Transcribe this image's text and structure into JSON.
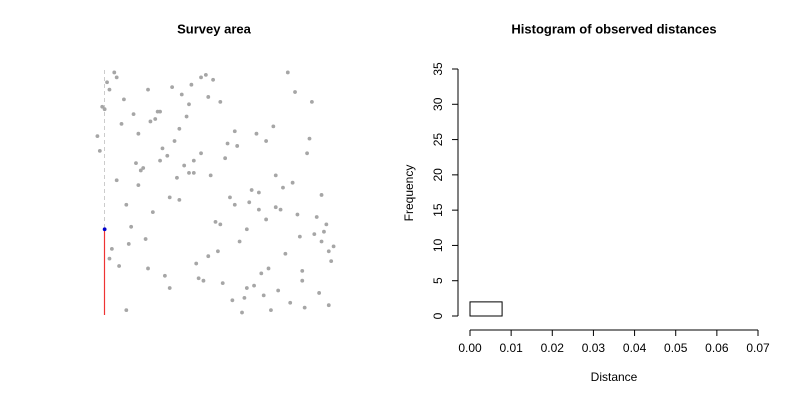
{
  "chart_data": [
    {
      "type": "scatter",
      "title": "Survey area",
      "xlim": [
        0,
        1
      ],
      "ylim": [
        0,
        1
      ],
      "series": [
        {
          "color": "#a6a6a6",
          "x": [
            0.12,
            0.45,
            0.78,
            0.33,
            0.91,
            0.05,
            0.62,
            0.27,
            0.84,
            0.51,
            0.19,
            0.73,
            0.38,
            0.96,
            0.08,
            0.56,
            0.29,
            0.67,
            0.14,
            0.88,
            0.42,
            0.03,
            0.75,
            0.31,
            0.59,
            0.95,
            0.22,
            0.48,
            0.81,
            0.11,
            0.64,
            0.36,
            0.99,
            0.17,
            0.53,
            0.26,
            0.71,
            0.44,
            0.09,
            0.86,
            0.58,
            0.21,
            0.93,
            0.39,
            0.68,
            0.02,
            0.47,
            0.77,
            0.32,
            0.61,
            0.15,
            0.89,
            0.41,
            0.72,
            0.25,
            0.97,
            0.54,
            0.07,
            0.83,
            0.35,
            0.66,
            0.18,
            0.49,
            0.92,
            0.28,
            0.79,
            0.04,
            0.57,
            0.37,
            0.85,
            0.23,
            0.69,
            0.13,
            0.46,
            0.98,
            0.34,
            0.63,
            0.01,
            0.76,
            0.52,
            0.87,
            0.3,
            0.6,
            0.16,
            0.94,
            0.43,
            0.74,
            0.24,
            0.55,
            0.06,
            0.82,
            0.4,
            0.7,
            0.2,
            0.5,
            0.9,
            0.1,
            0.65,
            0.35,
            0.8,
            0.44,
            0.97,
            0.27,
            0.58,
            0.13,
            0.71,
            0.39,
            0.86,
            0.06,
            0.52,
            0.31,
            0.63,
            0.18,
            0.94,
            0.47,
            0.75,
            0.22,
            0.09,
            0.68,
            0.41
          ],
          "y": [
            0.88,
            0.14,
            0.52,
            0.71,
            0.33,
            0.95,
            0.07,
            0.63,
            0.41,
            0.26,
            0.59,
            0.02,
            0.81,
            0.37,
            0.99,
            0.48,
            0.16,
            0.74,
            0.29,
            0.66,
            0.21,
            0.85,
            0.44,
            0.11,
            0.69,
            0.34,
            0.92,
            0.57,
            0.05,
            0.78,
            0.46,
            0.9,
            0.28,
            0.62,
            0.13,
            0.83,
            0.39,
            0.97,
            0.55,
            0.18,
            0.75,
            0.31,
            0.09,
            0.86,
            0.5,
            0.67,
            0.24,
            0.43,
            0.93,
            0.01,
            0.36,
            0.72,
            0.58,
            0.19,
            0.8,
            0.04,
            0.64,
            0.27,
            0.91,
            0.47,
            0.12,
            0.53,
            0.96,
            0.4,
            0.68,
            0.25,
            0.84,
            0.06,
            0.61,
            0.32,
            0.79,
            0.17,
            0.45,
            0.98,
            0.22,
            0.56,
            0.35,
            0.73,
            0.1,
            0.87,
            0.03,
            0.65,
            0.3,
            0.82,
            0.49,
            0.15,
            0.77,
            0.42,
            0.7,
            0.23,
            0.54,
            0.94,
            0.08,
            0.6,
            0.38,
            0.87,
            0.2,
            0.51,
            0.76,
            0.99,
            0.66,
            0.26,
            0.83,
            0.45,
            0.02,
            0.71,
            0.58,
            0.14,
            0.92,
            0.37,
            0.48,
            0.11,
            0.74,
            0.3,
            0.89,
            0.57,
            0.19,
            0.97,
            0.43,
            0.63
          ]
        },
        {
          "color": "#0000cc",
          "x": [
            0.04
          ],
          "y": [
            0.35
          ]
        }
      ]
    },
    {
      "type": "histogram",
      "title": "Histogram of observed distances",
      "xlabel": "Distance",
      "ylabel": "Frequency",
      "bins": [
        0,
        0.0078,
        0.0156,
        0.0233,
        0.0311,
        0.0389,
        0.0467,
        0.0544,
        0.0622,
        0.07
      ],
      "values": [
        2,
        0,
        0,
        0,
        0,
        0,
        0,
        0,
        0
      ],
      "xlim": [
        0,
        0.07
      ],
      "ylim": [
        0,
        35
      ],
      "xticks": [
        {
          "value": 0,
          "label": "0.00"
        },
        {
          "value": 0.01,
          "label": "0.01"
        },
        {
          "value": 0.02,
          "label": "0.02"
        },
        {
          "value": 0.03,
          "label": "0.03"
        },
        {
          "value": 0.04,
          "label": "0.04"
        },
        {
          "value": 0.05,
          "label": "0.05"
        },
        {
          "value": 0.06,
          "label": "0.06"
        },
        {
          "value": 0.07,
          "label": "0.07"
        }
      ],
      "yticks": [
        0,
        5,
        10,
        15,
        20,
        25,
        30,
        35
      ]
    }
  ]
}
